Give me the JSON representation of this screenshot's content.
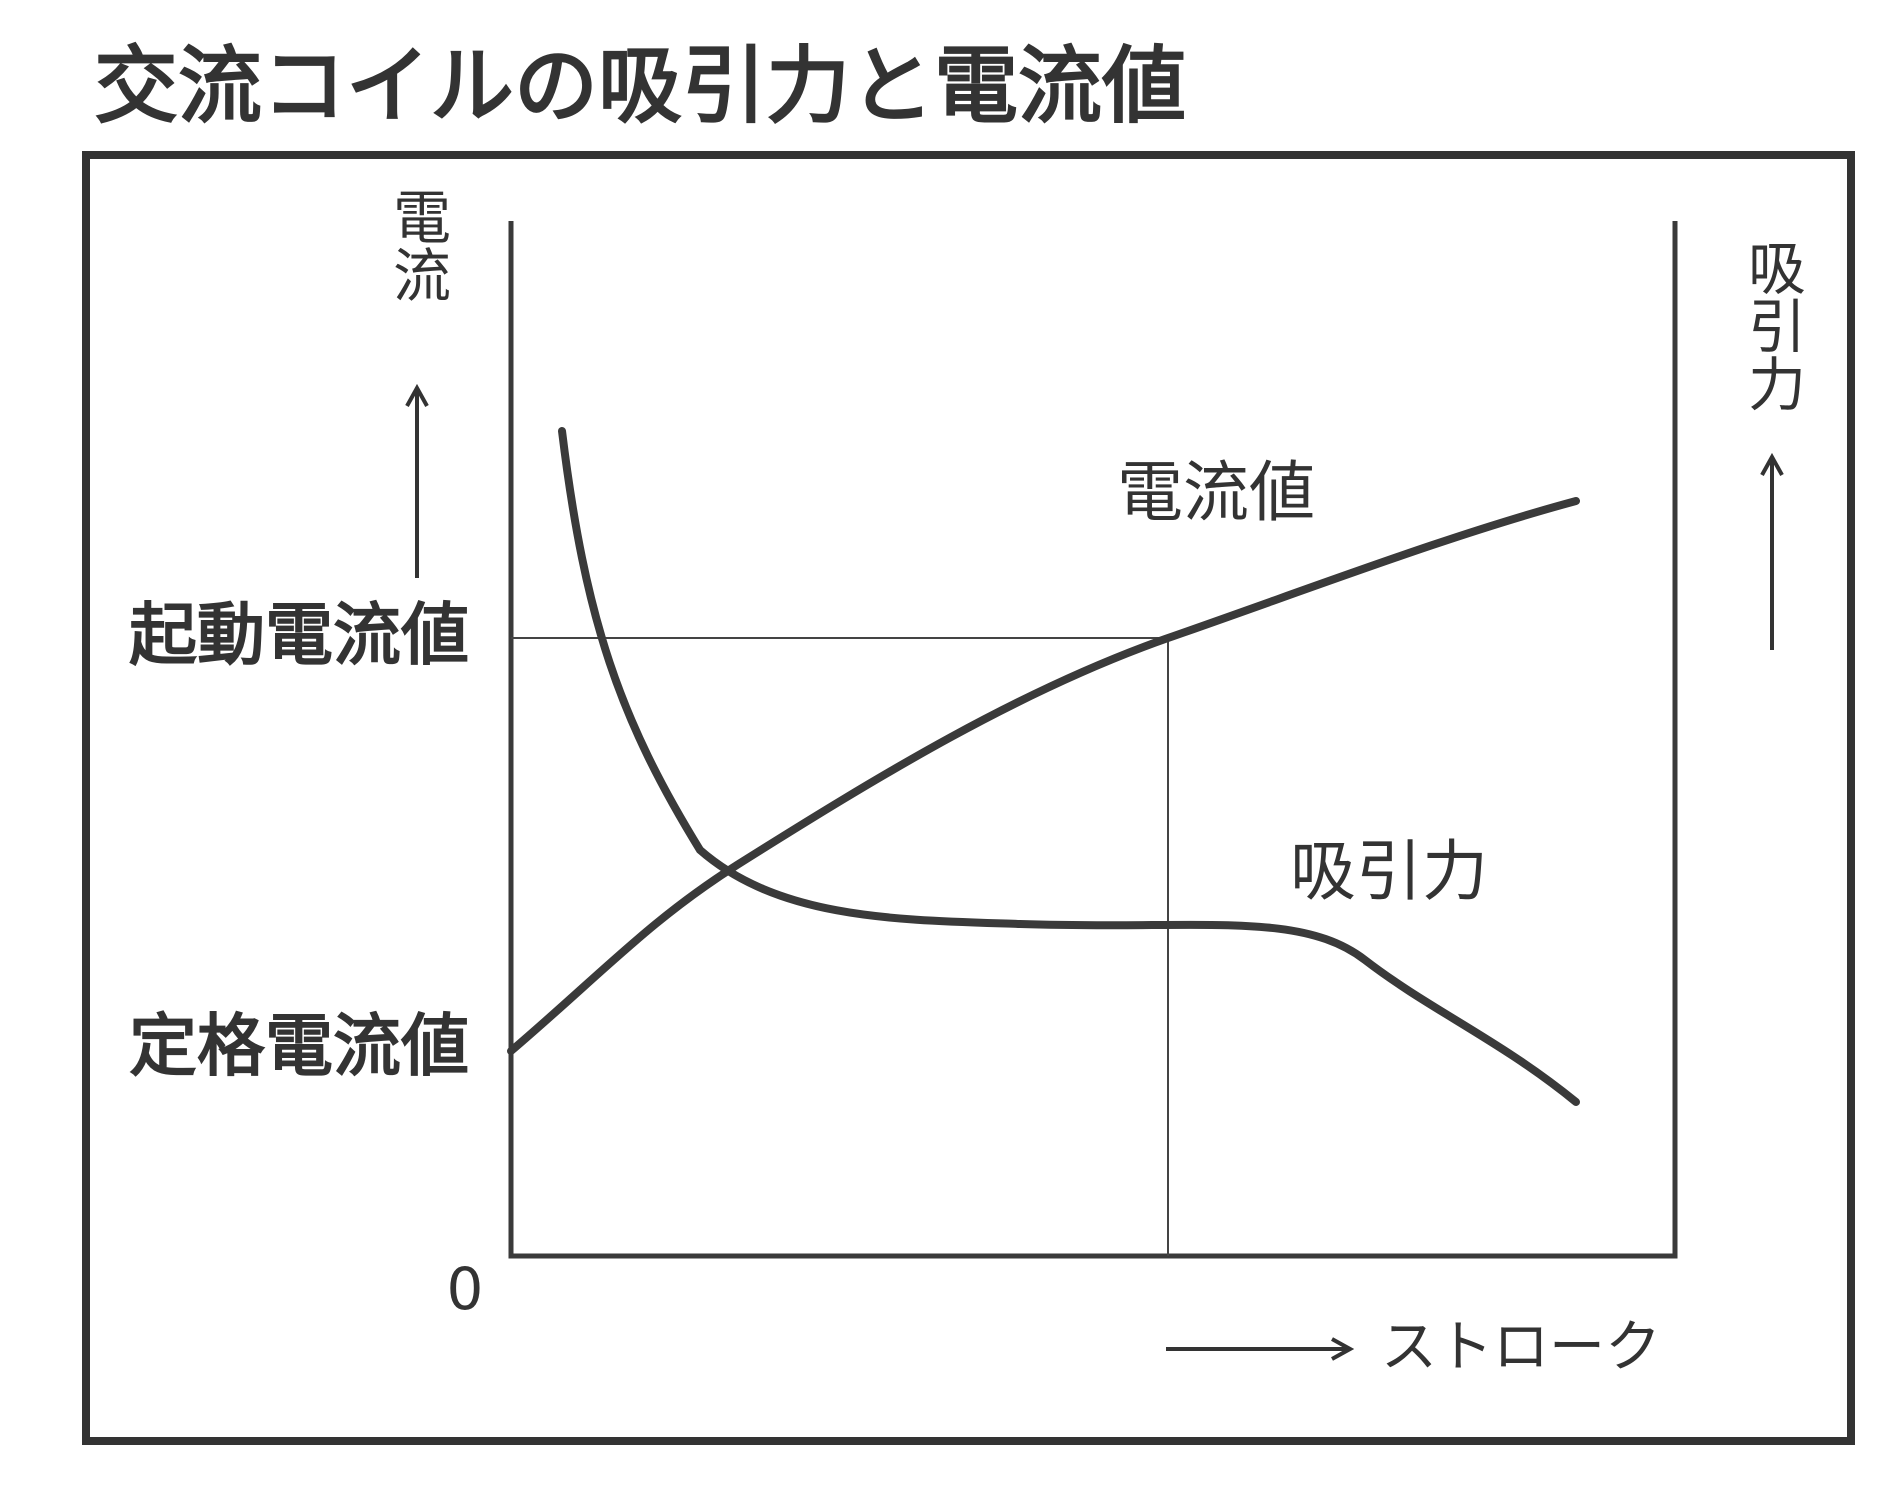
{
  "header": {
    "title": "交流コイルの吸引力と電流値"
  },
  "axes": {
    "left_label": "電流",
    "right_label": "吸引力",
    "origin": "0",
    "x_label": "ストローク"
  },
  "levels": {
    "starting_current": "起動電流値",
    "rated_current": "定格電流値"
  },
  "curves": {
    "current": "電流値",
    "force": "吸引力"
  }
}
